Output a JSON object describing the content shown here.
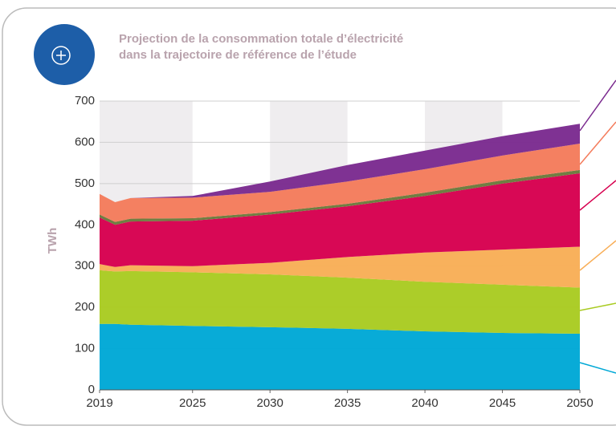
{
  "chart_data": {
    "type": "stacked_area",
    "title": [
      "Projection de la consommation totale d’électricité",
      "dans la trajectoire de référence de l’étude"
    ],
    "ylabel": "TWh",
    "x": [
      2019,
      2020,
      2021,
      2025,
      2030,
      2035,
      2040,
      2045,
      2050
    ],
    "series": [
      {
        "color": "#00a8d6",
        "values": [
          160,
          160,
          158,
          155,
          152,
          148,
          142,
          138,
          136
        ]
      },
      {
        "color": "#a9cb22",
        "values": [
          130,
          127,
          130,
          130,
          128,
          124,
          120,
          117,
          112
        ]
      },
      {
        "color": "#f8ae57",
        "values": [
          15,
          11,
          14,
          15,
          28,
          50,
          71,
          85,
          99
        ]
      },
      {
        "color": "#d7004f",
        "values": [
          113,
          102,
          106,
          110,
          117,
          123,
          137,
          160,
          178
        ]
      },
      {
        "color": "#6b7a3c",
        "values": [
          7,
          7,
          7,
          6,
          6,
          6,
          8,
          8,
          8
        ]
      },
      {
        "color": "#f47c5c",
        "values": [
          50,
          48,
          50,
          50,
          49,
          54,
          57,
          60,
          64
        ]
      },
      {
        "color": "#7b2b8f",
        "values": [
          0,
          0,
          0,
          4,
          25,
          40,
          45,
          47,
          48
        ]
      }
    ],
    "xlim": [
      2019,
      2050
    ],
    "xticks": [
      2019,
      2025,
      2030,
      2035,
      2040,
      2045,
      2050
    ],
    "ylim": [
      0,
      700
    ],
    "yticks": [
      0,
      100,
      200,
      300,
      400,
      500,
      600,
      700
    ],
    "grid": true
  }
}
